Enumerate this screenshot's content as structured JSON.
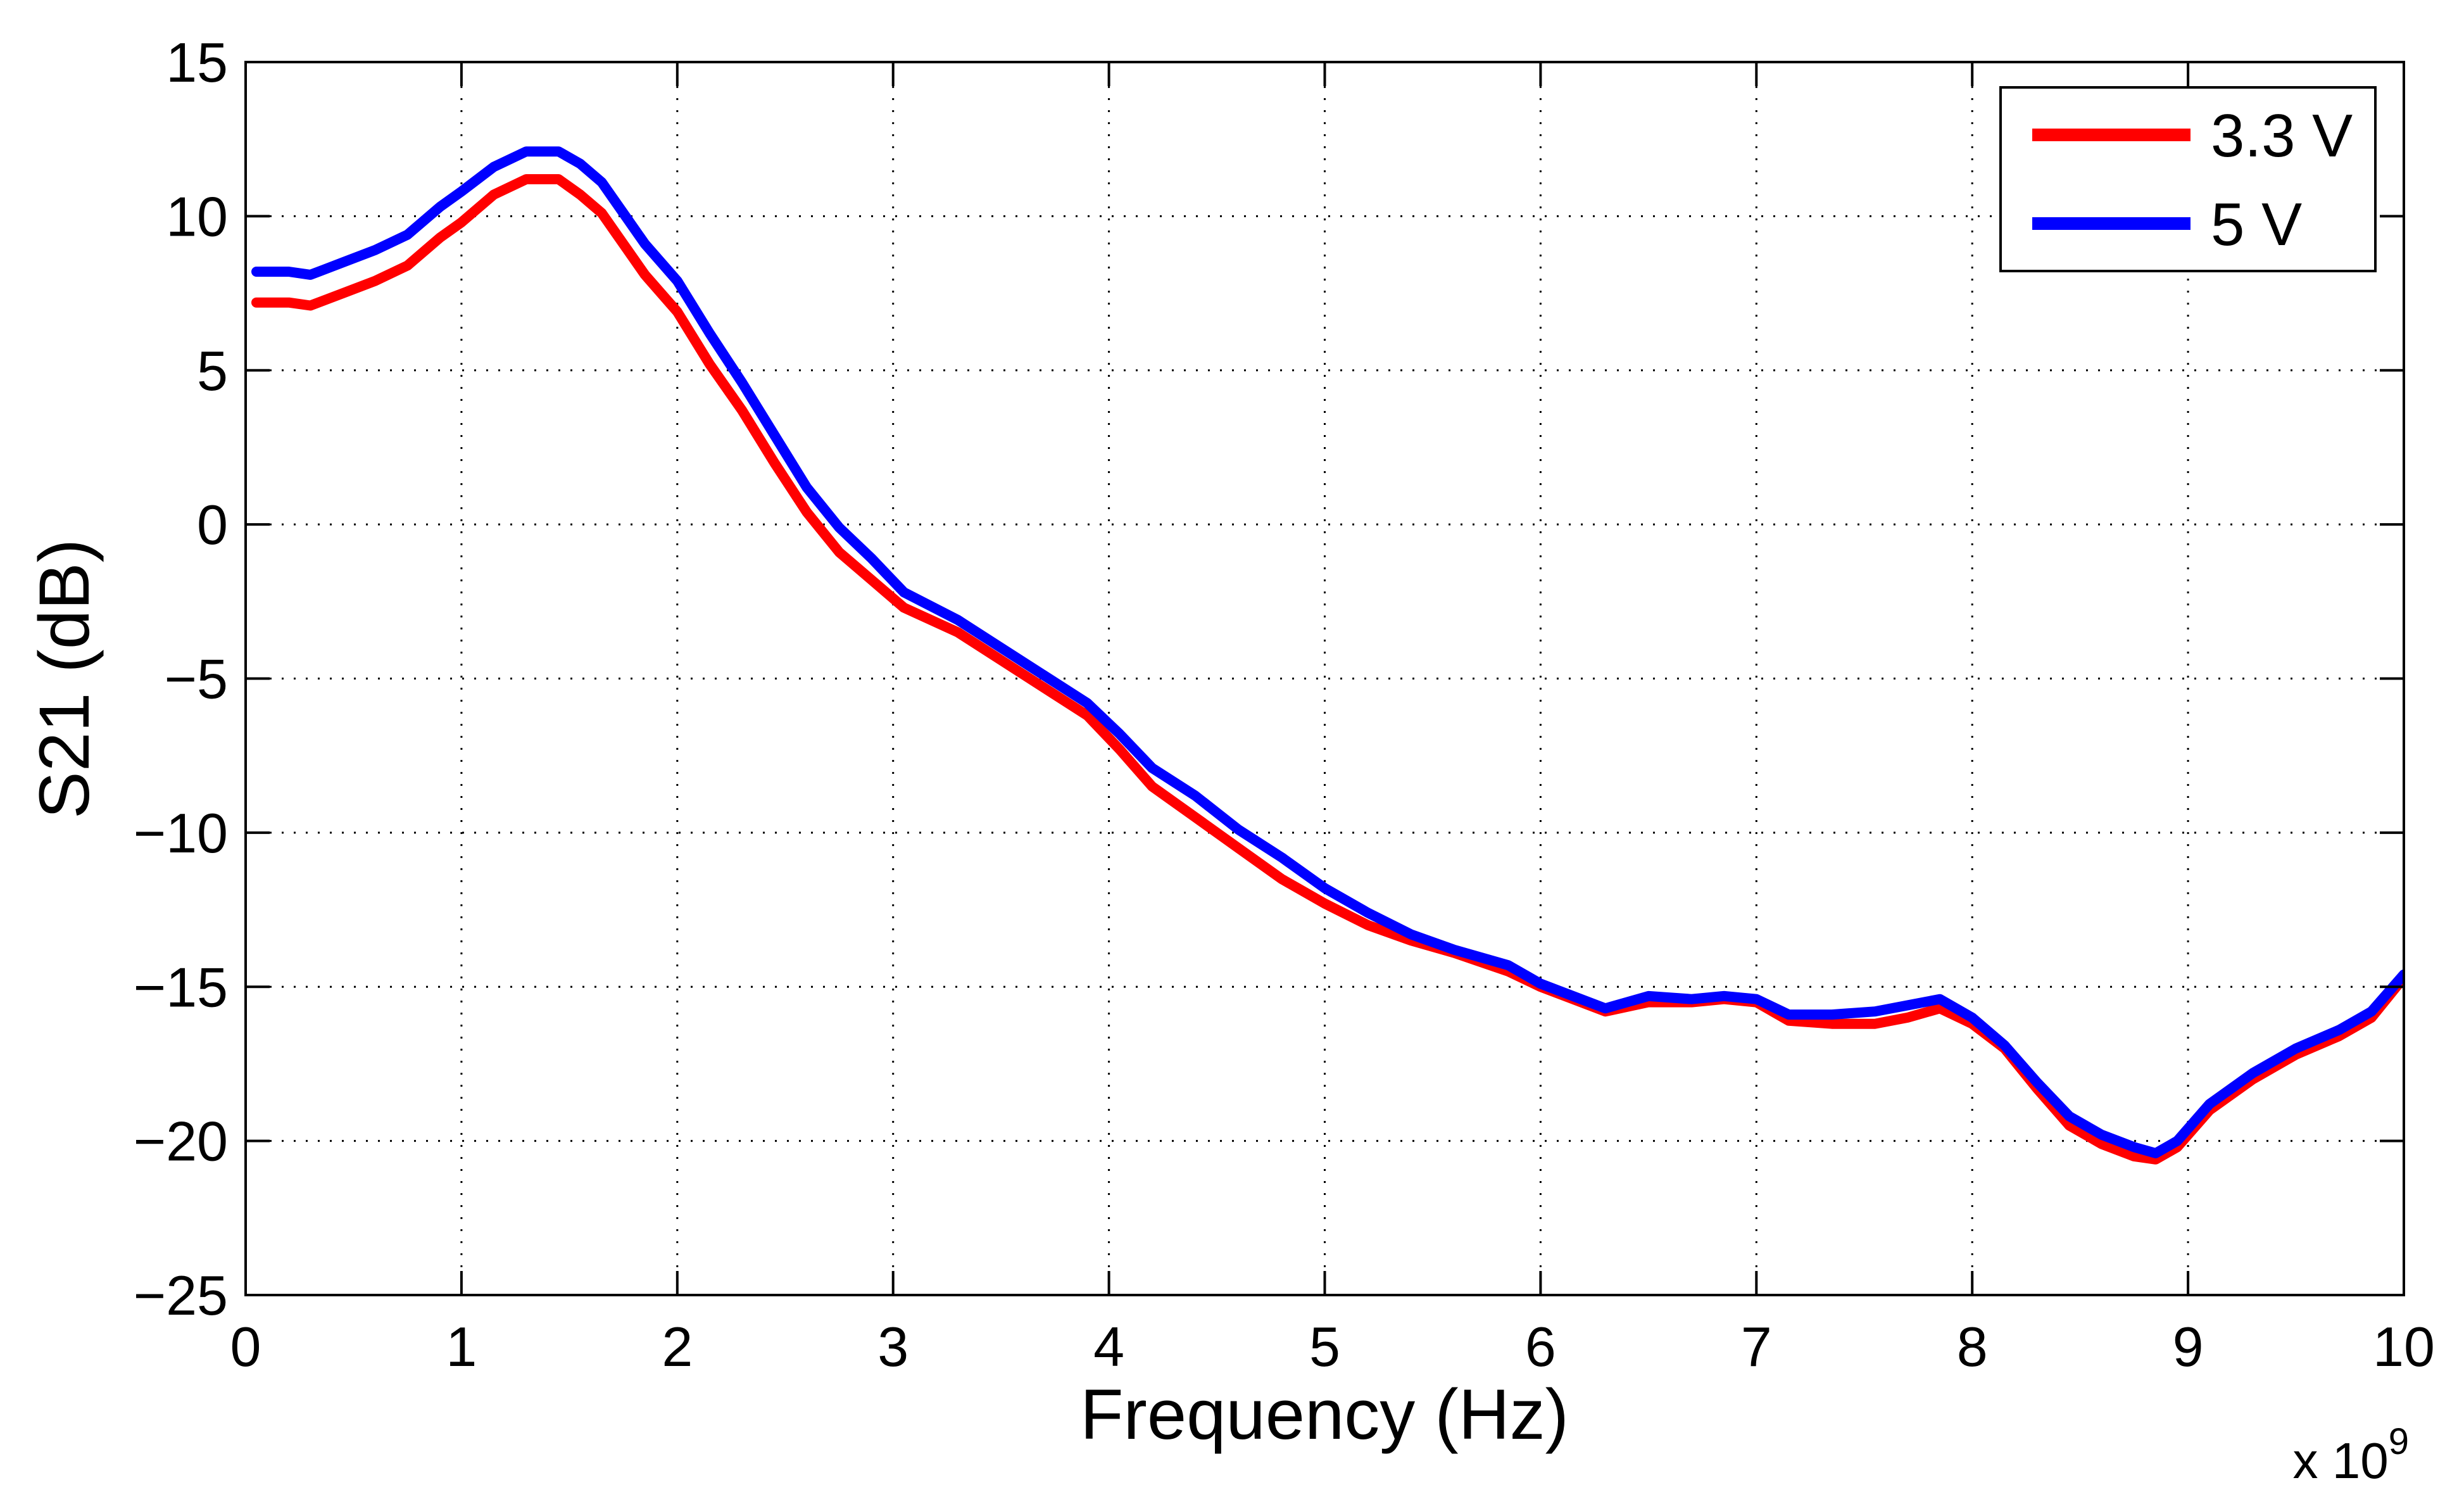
{
  "chart_data": {
    "type": "line",
    "title": "",
    "xlabel": "Frequency (Hz)",
    "ylabel": "S21 (dB)",
    "x_multiplier_label": "x 10",
    "x_multiplier_exponent": "9",
    "xlim": [
      0,
      10
    ],
    "ylim": [
      -25,
      15
    ],
    "xticks": [
      0,
      1,
      2,
      3,
      4,
      5,
      6,
      7,
      8,
      9,
      10
    ],
    "yticks": [
      15,
      10,
      5,
      0,
      -5,
      -10,
      -15,
      -20,
      -25
    ],
    "ytick_labels": [
      "15",
      "10",
      "5",
      "0",
      "−5",
      "−10",
      "−15",
      "−20",
      "−25"
    ],
    "grid": true,
    "legend_position": "top-right",
    "series": [
      {
        "name": "3.3 V",
        "color": "#ff0000",
        "x": [
          0.05,
          0.2,
          0.3,
          0.45,
          0.6,
          0.75,
          0.9,
          1.0,
          1.15,
          1.3,
          1.45,
          1.55,
          1.65,
          1.75,
          1.85,
          2.0,
          2.15,
          2.3,
          2.45,
          2.6,
          2.75,
          2.9,
          3.05,
          3.3,
          3.5,
          3.7,
          3.9,
          4.05,
          4.2,
          4.4,
          4.6,
          4.8,
          5.0,
          5.2,
          5.4,
          5.6,
          5.85,
          6.0,
          6.15,
          6.3,
          6.5,
          6.7,
          6.85,
          7.0,
          7.15,
          7.35,
          7.55,
          7.7,
          7.85,
          8.0,
          8.15,
          8.3,
          8.45,
          8.6,
          8.75,
          8.85,
          8.95,
          9.1,
          9.3,
          9.5,
          9.7,
          9.85,
          10.0
        ],
        "values": [
          7.2,
          7.2,
          7.1,
          7.5,
          7.9,
          8.4,
          9.3,
          9.8,
          10.7,
          11.2,
          11.2,
          10.7,
          10.1,
          9.1,
          8.1,
          6.9,
          5.2,
          3.7,
          2.0,
          0.4,
          -0.9,
          -1.8,
          -2.7,
          -3.5,
          -4.4,
          -5.3,
          -6.2,
          -7.3,
          -8.5,
          -9.5,
          -10.5,
          -11.5,
          -12.3,
          -13.0,
          -13.5,
          -13.9,
          -14.5,
          -15.0,
          -15.4,
          -15.8,
          -15.5,
          -15.5,
          -15.4,
          -15.5,
          -16.1,
          -16.2,
          -16.2,
          -16.0,
          -15.7,
          -16.2,
          -17.0,
          -18.3,
          -19.5,
          -20.1,
          -20.5,
          -20.6,
          -20.2,
          -19.0,
          -18.0,
          -17.2,
          -16.6,
          -16.0,
          -14.7
        ]
      },
      {
        "name": "5 V",
        "color": "#0000ff",
        "x": [
          0.05,
          0.2,
          0.3,
          0.45,
          0.6,
          0.75,
          0.9,
          1.0,
          1.15,
          1.3,
          1.45,
          1.55,
          1.65,
          1.75,
          1.85,
          2.0,
          2.15,
          2.3,
          2.45,
          2.6,
          2.75,
          2.9,
          3.05,
          3.3,
          3.5,
          3.7,
          3.9,
          4.05,
          4.2,
          4.4,
          4.6,
          4.8,
          5.0,
          5.2,
          5.4,
          5.6,
          5.85,
          6.0,
          6.15,
          6.3,
          6.5,
          6.7,
          6.85,
          7.0,
          7.15,
          7.35,
          7.55,
          7.7,
          7.85,
          8.0,
          8.15,
          8.3,
          8.45,
          8.6,
          8.75,
          8.85,
          8.95,
          9.1,
          9.3,
          9.5,
          9.7,
          9.85,
          10.0
        ],
        "values": [
          8.2,
          8.2,
          8.1,
          8.5,
          8.9,
          9.4,
          10.3,
          10.8,
          11.6,
          12.1,
          12.1,
          11.7,
          11.1,
          10.1,
          9.1,
          7.9,
          6.2,
          4.6,
          2.9,
          1.2,
          -0.1,
          -1.1,
          -2.2,
          -3.1,
          -4.0,
          -4.9,
          -5.8,
          -6.8,
          -7.9,
          -8.8,
          -9.9,
          -10.8,
          -11.8,
          -12.6,
          -13.3,
          -13.8,
          -14.3,
          -14.9,
          -15.3,
          -15.7,
          -15.3,
          -15.4,
          -15.3,
          -15.4,
          -15.9,
          -15.9,
          -15.8,
          -15.6,
          -15.4,
          -16.0,
          -16.9,
          -18.1,
          -19.2,
          -19.8,
          -20.2,
          -20.4,
          -20.0,
          -18.8,
          -17.8,
          -17.0,
          -16.4,
          -15.8,
          -14.6
        ]
      }
    ]
  }
}
